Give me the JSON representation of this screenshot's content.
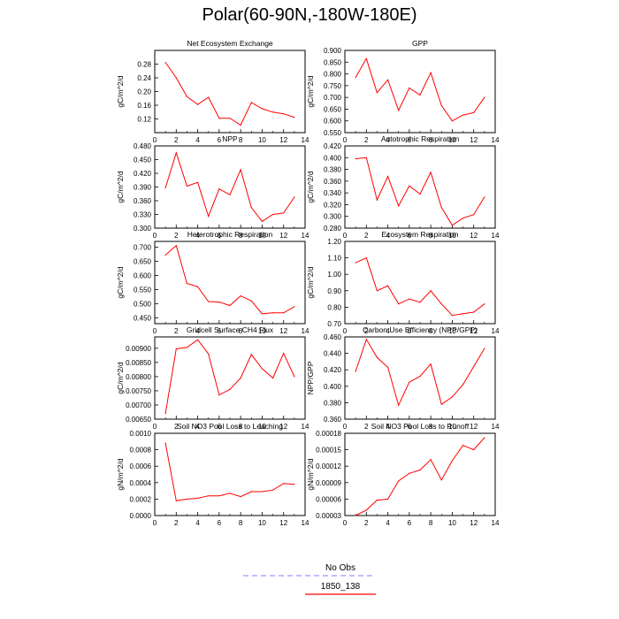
{
  "title": "Polar(60-90N,-180W-180E)",
  "legend": {
    "entries": [
      {
        "label": "No Obs",
        "color": "#9999ff",
        "dash": true
      },
      {
        "label": "1850_138",
        "color": "#ff0000",
        "dash": false
      }
    ]
  },
  "chart_data": [
    {
      "type": "line",
      "title": "Net Ecosystem Exchange",
      "ylabel": "gC/m^2/d",
      "xlim": [
        0,
        14
      ],
      "ylim": [
        0.08,
        0.32
      ],
      "xticks": [
        0,
        2,
        4,
        6,
        8,
        10,
        12,
        14
      ],
      "yticks": [
        "0.12",
        "0.16",
        "0.20",
        "0.24",
        "0.28"
      ],
      "x": [
        1,
        2,
        3,
        4,
        5,
        6,
        7,
        8,
        9,
        10,
        11,
        12,
        13
      ],
      "series": [
        {
          "name": "1850_138",
          "values": [
            0.285,
            0.24,
            0.185,
            0.162,
            0.183,
            0.122,
            0.122,
            0.102,
            0.168,
            0.15,
            0.14,
            0.135,
            0.125
          ]
        }
      ]
    },
    {
      "type": "line",
      "title": "GPP",
      "ylabel": "gC/m^2/d",
      "xlim": [
        0,
        14
      ],
      "ylim": [
        0.55,
        0.9
      ],
      "xticks": [
        0,
        2,
        4,
        6,
        8,
        10,
        12,
        14
      ],
      "yticks": [
        "0.550",
        "0.600",
        "0.650",
        "0.700",
        "0.750",
        "0.800",
        "0.850",
        "0.900"
      ],
      "x": [
        1,
        2,
        3,
        4,
        5,
        6,
        7,
        8,
        9,
        10,
        11,
        12,
        13
      ],
      "series": [
        {
          "name": "1850_138",
          "values": [
            0.785,
            0.865,
            0.72,
            0.775,
            0.645,
            0.74,
            0.71,
            0.805,
            0.665,
            0.6,
            0.625,
            0.635,
            0.7
          ]
        }
      ]
    },
    {
      "type": "line",
      "title": "NPP",
      "ylabel": "gC/m^2/d",
      "xlim": [
        0,
        14
      ],
      "ylim": [
        0.3,
        0.48
      ],
      "xticks": [
        0,
        2,
        4,
        6,
        8,
        10,
        12,
        14
      ],
      "yticks": [
        "0.300",
        "0.330",
        "0.360",
        "0.390",
        "0.420",
        "0.450",
        "0.480"
      ],
      "x": [
        1,
        2,
        3,
        4,
        5,
        6,
        7,
        8,
        9,
        10,
        11,
        12,
        13
      ],
      "series": [
        {
          "name": "1850_138",
          "values": [
            0.388,
            0.465,
            0.392,
            0.4,
            0.326,
            0.386,
            0.373,
            0.428,
            0.345,
            0.315,
            0.33,
            0.333,
            0.368
          ]
        }
      ]
    },
    {
      "type": "line",
      "title": "Autotrophic Respiration",
      "ylabel": "gC/m^2/d",
      "xlim": [
        0,
        14
      ],
      "ylim": [
        0.28,
        0.42
      ],
      "xticks": [
        0,
        2,
        4,
        6,
        8,
        10,
        12,
        14
      ],
      "yticks": [
        "0.280",
        "0.300",
        "0.320",
        "0.340",
        "0.360",
        "0.380",
        "0.400",
        "0.420"
      ],
      "x": [
        1,
        2,
        3,
        4,
        5,
        6,
        7,
        8,
        9,
        10,
        11,
        12,
        13
      ],
      "series": [
        {
          "name": "1850_138",
          "values": [
            0.398,
            0.4,
            0.328,
            0.368,
            0.318,
            0.352,
            0.338,
            0.375,
            0.315,
            0.285,
            0.297,
            0.303,
            0.333
          ]
        }
      ]
    },
    {
      "type": "line",
      "title": "Heterotrophic Respiration",
      "ylabel": "gC/m^2/d",
      "xlim": [
        0,
        14
      ],
      "ylim": [
        0.43,
        0.72
      ],
      "xticks": [
        0,
        2,
        4,
        6,
        8,
        10,
        12,
        14
      ],
      "yticks": [
        "0.450",
        "0.500",
        "0.550",
        "0.600",
        "0.650",
        "0.700"
      ],
      "x": [
        1,
        2,
        3,
        4,
        5,
        6,
        7,
        8,
        9,
        10,
        11,
        12,
        13
      ],
      "series": [
        {
          "name": "1850_138",
          "values": [
            0.672,
            0.705,
            0.572,
            0.56,
            0.508,
            0.506,
            0.494,
            0.528,
            0.51,
            0.465,
            0.468,
            0.468,
            0.49
          ]
        }
      ]
    },
    {
      "type": "line",
      "title": "Ecosystem Respiration",
      "ylabel": "gC/m^2/d",
      "xlim": [
        0,
        14
      ],
      "ylim": [
        0.7,
        1.2
      ],
      "xticks": [
        0,
        2,
        4,
        6,
        8,
        10,
        12,
        14
      ],
      "yticks": [
        "0.70",
        "0.80",
        "0.90",
        "1.00",
        "1.10",
        "1.20"
      ],
      "x": [
        1,
        2,
        3,
        4,
        5,
        6,
        7,
        8,
        9,
        10,
        11,
        12,
        13
      ],
      "series": [
        {
          "name": "1850_138",
          "values": [
            1.07,
            1.1,
            0.9,
            0.93,
            0.82,
            0.85,
            0.83,
            0.9,
            0.82,
            0.75,
            0.76,
            0.77,
            0.82
          ]
        }
      ]
    },
    {
      "type": "line",
      "title": "Gridcell Surface CH4 Flux",
      "ylabel": "gC/m^2/d",
      "xlim": [
        0,
        14
      ],
      "ylim": [
        0.0065,
        0.0094
      ],
      "xticks": [
        0,
        2,
        4,
        6,
        8,
        10,
        12,
        14
      ],
      "yticks": [
        "0.00650",
        "0.00700",
        "0.00750",
        "0.00800",
        "0.00850",
        "0.00900"
      ],
      "x": [
        1,
        2,
        3,
        4,
        5,
        6,
        7,
        8,
        9,
        10,
        11,
        12,
        13
      ],
      "series": [
        {
          "name": "1850_138",
          "values": [
            0.0067,
            0.00898,
            0.00903,
            0.0093,
            0.0088,
            0.00735,
            0.00755,
            0.00795,
            0.00878,
            0.00828,
            0.00795,
            0.00882,
            0.008
          ]
        }
      ]
    },
    {
      "type": "line",
      "title": "Carbon Use Efficiency (NPP/GPP)",
      "ylabel": "NPP/GPP",
      "xlim": [
        0,
        14
      ],
      "ylim": [
        0.36,
        0.46
      ],
      "xticks": [
        0,
        2,
        4,
        6,
        8,
        10,
        12,
        14
      ],
      "yticks": [
        "0.360",
        "0.380",
        "0.400",
        "0.420",
        "0.440",
        "0.460"
      ],
      "x": [
        1,
        2,
        3,
        4,
        5,
        6,
        7,
        8,
        9,
        10,
        11,
        12,
        13
      ],
      "series": [
        {
          "name": "1850_138",
          "values": [
            0.418,
            0.457,
            0.435,
            0.423,
            0.377,
            0.405,
            0.412,
            0.427,
            0.378,
            0.387,
            0.402,
            0.424,
            0.446
          ]
        }
      ]
    },
    {
      "type": "line",
      "title": "Soil NO3 Pool Loss to Leaching",
      "ylabel": "gN/m^2/d",
      "xlim": [
        0,
        14
      ],
      "ylim": [
        0.0,
        0.001
      ],
      "xticks": [
        0,
        2,
        4,
        6,
        8,
        10,
        12,
        14
      ],
      "yticks": [
        "0.0000",
        "0.0002",
        "0.0004",
        "0.0006",
        "0.0008",
        "0.0010"
      ],
      "x": [
        1,
        2,
        3,
        4,
        5,
        6,
        7,
        8,
        9,
        10,
        11,
        12,
        13
      ],
      "series": [
        {
          "name": "1850_138",
          "values": [
            0.00088,
            0.00018,
            0.0002,
            0.00021,
            0.00024,
            0.00024,
            0.00027,
            0.00023,
            0.00029,
            0.00029,
            0.00031,
            0.00039,
            0.00038
          ]
        }
      ]
    },
    {
      "type": "line",
      "title": "Soil NO3 Pool Loss to Runoff",
      "ylabel": "gN/m^2/d",
      "xlim": [
        0,
        14
      ],
      "ylim": [
        3e-05,
        0.00018
      ],
      "xticks": [
        0,
        2,
        4,
        6,
        8,
        10,
        12,
        14
      ],
      "yticks": [
        "0.00003",
        "0.00006",
        "0.00009",
        "0.00012",
        "0.00015",
        "0.00018"
      ],
      "x": [
        1,
        2,
        3,
        4,
        5,
        6,
        7,
        8,
        9,
        10,
        11,
        12,
        13
      ],
      "series": [
        {
          "name": "1850_138",
          "values": [
            3e-05,
            4e-05,
            5.8e-05,
            6e-05,
            9.3e-05,
            0.000107,
            0.000113,
            0.000132,
            9.5e-05,
            0.00013,
            0.000158,
            0.00015,
            0.000172
          ]
        }
      ]
    }
  ]
}
